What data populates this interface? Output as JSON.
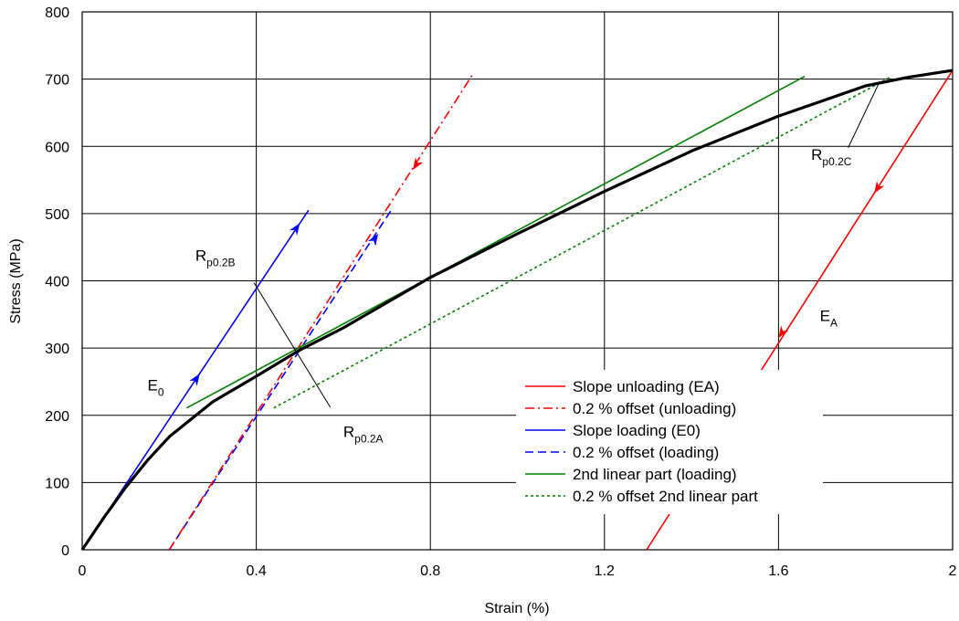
{
  "chart_data": {
    "type": "line",
    "title": "",
    "xlabel": "Strain (%)",
    "ylabel": "Stress (MPa)",
    "xlim": [
      0,
      2
    ],
    "ylim": [
      0,
      800
    ],
    "xticks": [
      0,
      0.4,
      0.8,
      1.2,
      1.6,
      2
    ],
    "xtick_labels": [
      "0",
      "0.4",
      "0.8",
      "1.2",
      "1.6",
      "2"
    ],
    "yticks": [
      0,
      100,
      200,
      300,
      400,
      500,
      600,
      700,
      800
    ],
    "ytick_labels": [
      "0",
      "100",
      "200",
      "300",
      "400",
      "500",
      "600",
      "700",
      "800"
    ],
    "grid": true,
    "legend_position": "bottom-right",
    "series": [
      {
        "key": "curve",
        "color": "#000000",
        "style": "solid",
        "x": [
          0,
          0.05,
          0.1,
          0.15,
          0.2,
          0.3,
          0.4,
          0.5,
          0.6,
          0.8,
          1.0,
          1.2,
          1.4,
          1.6,
          1.8,
          1.9,
          2.0
        ],
        "y": [
          0,
          48,
          93,
          133,
          168,
          220,
          258,
          297,
          330,
          405,
          470,
          533,
          593,
          645,
          690,
          703,
          713
        ]
      },
      {
        "key": "unloading_slope",
        "name": "Slope unloading (EA)",
        "color": "#ff0000",
        "style": "solid",
        "x": [
          1.297,
          2.0
        ],
        "y": [
          0,
          713
        ]
      },
      {
        "key": "unloading_offset",
        "name": "0.2 % offset (unloading)",
        "color": "#ff0000",
        "style": "dashdot",
        "x": [
          0.2,
          0.9
        ],
        "y": [
          0,
          710
        ]
      },
      {
        "key": "loading_slope",
        "name": "Slope loading (E0)",
        "color": "#0000ff",
        "style": "solid",
        "x": [
          0,
          0.52
        ],
        "y": [
          0,
          505
        ]
      },
      {
        "key": "loading_offset",
        "name": "0.2 % offset (loading)",
        "color": "#0000ff",
        "style": "dashed",
        "x": [
          0.2,
          0.71
        ],
        "y": [
          0,
          505
        ]
      },
      {
        "key": "second_linear",
        "name": "2nd linear part (loading)",
        "color": "#008000",
        "style": "solid",
        "x": [
          0.24,
          1.66
        ],
        "y": [
          211,
          704
        ]
      },
      {
        "key": "second_linear_offset",
        "name": "0.2 % offset 2nd linear part",
        "color": "#008000",
        "style": "dotted",
        "x": [
          0.44,
          1.86
        ],
        "y": [
          211,
          704
        ]
      }
    ],
    "arrows": [
      {
        "series": "loading_slope",
        "x": 0.27,
        "y": 262,
        "direction": "up",
        "color": "#0000ff"
      },
      {
        "series": "loading_slope",
        "x": 0.5,
        "y": 486,
        "direction": "up",
        "color": "#0000ff"
      },
      {
        "series": "loading_offset",
        "x": 0.68,
        "y": 470,
        "direction": "up",
        "color": "#0000ff"
      },
      {
        "series": "unloading_offset",
        "x": 0.76,
        "y": 565,
        "direction": "down",
        "color": "#ff0000"
      },
      {
        "series": "unloading_slope",
        "x": 1.82,
        "y": 530,
        "direction": "down",
        "color": "#ff0000"
      },
      {
        "series": "unloading_slope",
        "x": 1.6,
        "y": 315,
        "direction": "down",
        "color": "#ff0000"
      }
    ],
    "annotations": [
      {
        "main": "E",
        "sub": "0",
        "x": 0.15,
        "y": 237
      },
      {
        "main": "E",
        "sub": "A",
        "x": 1.695,
        "y": 340
      },
      {
        "main": "R",
        "sub": "p0.2B",
        "x": 0.26,
        "y": 430,
        "leader": {
          "from": [
            0.395,
            397
          ],
          "to": [
            0.57,
            212
          ]
        }
      },
      {
        "main": "R",
        "sub": "p0.2A",
        "x": 0.6,
        "y": 168
      },
      {
        "main": "R",
        "sub": "p0.2C",
        "x": 1.675,
        "y": 580,
        "leader": {
          "from": [
            1.83,
            693
          ],
          "to": [
            1.76,
            598
          ]
        }
      }
    ]
  }
}
